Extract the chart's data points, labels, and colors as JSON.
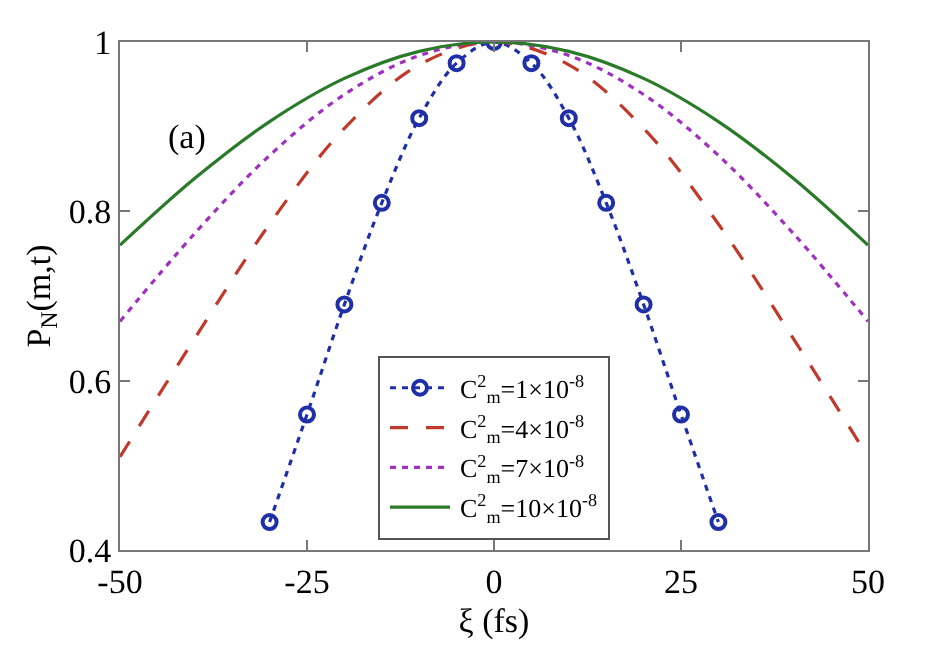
{
  "chart_data": {
    "type": "line",
    "xlabel": "ξ (fs)",
    "ylabel": "P$_{N}$(m,t)",
    "annotations": [
      "(a)"
    ],
    "xlim": [
      -50,
      50
    ],
    "xticks": [
      -50,
      -25,
      0,
      25,
      50
    ],
    "ylim": [
      0.4,
      1
    ],
    "yticks": [
      0.4,
      0.6,
      0.8,
      1
    ],
    "legend": "bottom",
    "series": [
      {
        "name": "C$^{2}$$_{m}$=1×10$^{-8}$",
        "color": "#1f2fa8",
        "marker": "circle",
        "line_style": "dotted",
        "x": [
          -30,
          -25,
          -20,
          -15,
          -10,
          -5,
          0,
          5,
          10,
          15,
          20,
          25,
          30
        ],
        "values": [
          0.433,
          0.56,
          0.69,
          0.81,
          0.91,
          0.975,
          1.0,
          0.975,
          0.91,
          0.81,
          0.69,
          0.56,
          0.433
        ]
      },
      {
        "name": "C$^{2}$$_{m}$=4×10$^{-8}$",
        "color": "#c0392b",
        "marker": "none",
        "line_style": "dashed",
        "x": [
          -50,
          -40,
          -30,
          -20,
          -10,
          0,
          10,
          20,
          30,
          40,
          50
        ],
        "values": [
          0.51,
          0.65,
          0.785,
          0.898,
          0.973,
          1.0,
          0.973,
          0.898,
          0.785,
          0.65,
          0.51
        ]
      },
      {
        "name": "C$^{2}$$_{m}$=7×10$^{-8}$",
        "color": "#a030c0",
        "marker": "none",
        "line_style": "dotted",
        "x": [
          -50,
          -40,
          -30,
          -20,
          -10,
          0,
          10,
          20,
          30,
          40,
          50
        ],
        "values": [
          0.67,
          0.774,
          0.866,
          0.938,
          0.984,
          1.0,
          0.984,
          0.938,
          0.866,
          0.774,
          0.67
        ]
      },
      {
        "name": "C$^{2}$$_{m}$=10×10$^{-8}$",
        "color": "#2a7a2a",
        "marker": "none",
        "line_style": "solid",
        "x": [
          -50,
          -40,
          -30,
          -20,
          -10,
          0,
          10,
          20,
          30,
          40,
          50
        ],
        "values": [
          0.76,
          0.839,
          0.906,
          0.957,
          0.989,
          1.0,
          0.989,
          0.957,
          0.906,
          0.839,
          0.76
        ]
      }
    ]
  }
}
